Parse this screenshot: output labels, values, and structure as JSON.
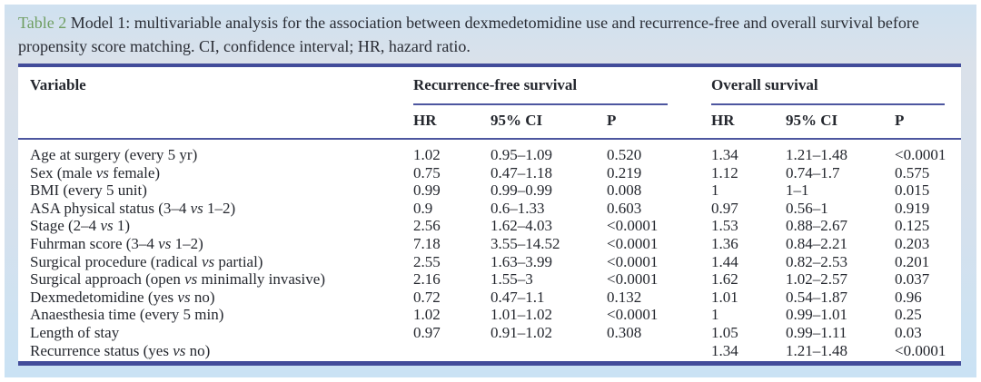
{
  "caption": {
    "label": "Table 2",
    "text": "Model 1: multivariable analysis for the association between dexmedetomidine use and recurrence-free and overall survival before propensity score matching. CI, confidence interval; HR, hazard ratio."
  },
  "table": {
    "variable_header": "Variable",
    "groups": [
      {
        "label": "Recurrence-free survival",
        "columns": [
          "HR",
          "95% CI",
          "P"
        ]
      },
      {
        "label": "Overall survival",
        "columns": [
          "HR",
          "95% CI",
          "P"
        ]
      }
    ],
    "rows": [
      {
        "variable": "Age at surgery (every 5 yr)",
        "values": [
          "1.02",
          "0.95–1.09",
          "0.520",
          "1.34",
          "1.21–1.48",
          "<0.0001"
        ]
      },
      {
        "variable": "Sex (male vs female)",
        "values": [
          "0.75",
          "0.47–1.18",
          "0.219",
          "1.12",
          "0.74–1.7",
          "0.575"
        ]
      },
      {
        "variable": "BMI (every 5 unit)",
        "values": [
          "0.99",
          "0.99–0.99",
          "0.008",
          "1",
          "1–1",
          "0.015"
        ]
      },
      {
        "variable": "ASA physical status (3–4 vs 1–2)",
        "values": [
          "0.9",
          "0.6–1.33",
          "0.603",
          "0.97",
          "0.56–1",
          "0.919"
        ]
      },
      {
        "variable": "Stage (2–4 vs 1)",
        "values": [
          "2.56",
          "1.62–4.03",
          "<0.0001",
          "1.53",
          "0.88–2.67",
          "0.125"
        ]
      },
      {
        "variable": "Fuhrman score (3–4 vs 1–2)",
        "values": [
          "7.18",
          "3.55–14.52",
          "<0.0001",
          "1.36",
          "0.84–2.21",
          "0.203"
        ]
      },
      {
        "variable": "Surgical procedure (radical vs partial)",
        "values": [
          "2.55",
          "1.63–3.99",
          "<0.0001",
          "1.44",
          "0.82–2.53",
          "0.201"
        ]
      },
      {
        "variable": "Surgical approach (open vs minimally invasive)",
        "values": [
          "2.16",
          "1.55–3",
          "<0.0001",
          "1.62",
          "1.02–2.57",
          "0.037"
        ]
      },
      {
        "variable": "Dexmedetomidine (yes vs no)",
        "values": [
          "0.72",
          "0.47–1.1",
          "0.132",
          "1.01",
          "0.54–1.87",
          "0.96"
        ]
      },
      {
        "variable": "Anaesthesia time (every 5 min)",
        "values": [
          "1.02",
          "1.01–1.02",
          "<0.0001",
          "1",
          "0.99–1.01",
          "0.25"
        ]
      },
      {
        "variable": "Length of stay",
        "values": [
          "0.97",
          "0.91–1.02",
          "0.308",
          "1.05",
          "0.99–1.11",
          "0.03"
        ]
      },
      {
        "variable": "Recurrence status (yes vs no)",
        "values": [
          "",
          "",
          "",
          "1.34",
          "1.21–1.48",
          "<0.0001"
        ]
      }
    ]
  },
  "colors": {
    "accent_navy": "#424c9a",
    "rule_thin": "#4d569f",
    "caption_green": "#6f9e62",
    "page_background": "#d5e1ee",
    "card_background": "#ffffff",
    "text": "#24272e"
  }
}
